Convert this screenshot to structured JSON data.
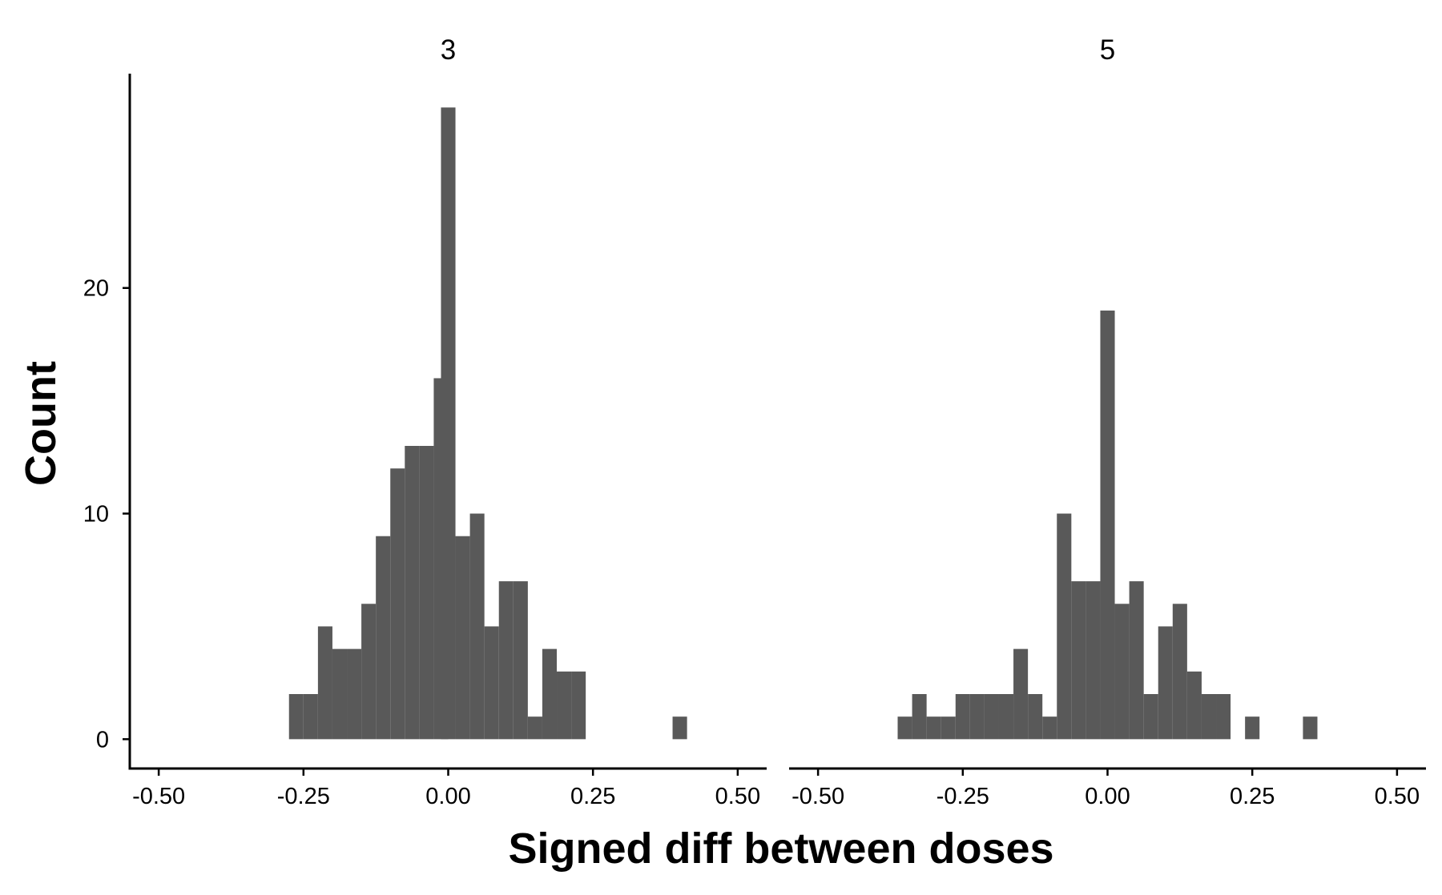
{
  "colors": {
    "bar": "#595959",
    "axis": "#000000",
    "background": "#ffffff"
  },
  "chart_data": {
    "type": "bar",
    "xlabel": "Signed diff between doses",
    "ylabel": "Count",
    "xlim": [
      -0.55,
      0.55
    ],
    "ylim": [
      -1.3,
      29.5
    ],
    "x_ticks": [
      -0.5,
      -0.25,
      0.0,
      0.25,
      0.5
    ],
    "x_tick_labels": [
      "-0.50",
      "-0.25",
      "0.00",
      "0.25",
      "0.50"
    ],
    "y_ticks": [
      0,
      10,
      20
    ],
    "y_tick_labels": [
      "0",
      "10",
      "20"
    ],
    "bin_width": 0.025,
    "grid": false,
    "panels": [
      {
        "strip_label": "3",
        "bins": [
          {
            "x": -0.2625,
            "count": 2
          },
          {
            "x": -0.2375,
            "count": 2
          },
          {
            "x": -0.2125,
            "count": 5
          },
          {
            "x": -0.1875,
            "count": 4
          },
          {
            "x": -0.1625,
            "count": 4
          },
          {
            "x": -0.1375,
            "count": 6
          },
          {
            "x": -0.1125,
            "count": 9
          },
          {
            "x": -0.0875,
            "count": 12
          },
          {
            "x": -0.0625,
            "count": 13
          },
          {
            "x": -0.0375,
            "count": 13
          },
          {
            "x": -0.0125,
            "count": 16
          },
          {
            "x": 0.0,
            "count": 28
          },
          {
            "x": 0.025,
            "count": 9
          },
          {
            "x": 0.05,
            "count": 10
          },
          {
            "x": 0.075,
            "count": 5
          },
          {
            "x": 0.1,
            "count": 7
          },
          {
            "x": 0.125,
            "count": 7
          },
          {
            "x": 0.15,
            "count": 1
          },
          {
            "x": 0.175,
            "count": 4
          },
          {
            "x": 0.2,
            "count": 3
          },
          {
            "x": 0.225,
            "count": 3
          },
          {
            "x": 0.4,
            "count": 1
          }
        ]
      },
      {
        "strip_label": "5",
        "bins": [
          {
            "x": -0.35,
            "count": 1
          },
          {
            "x": -0.325,
            "count": 2
          },
          {
            "x": -0.3,
            "count": 1
          },
          {
            "x": -0.275,
            "count": 1
          },
          {
            "x": -0.25,
            "count": 2
          },
          {
            "x": -0.225,
            "count": 2
          },
          {
            "x": -0.2,
            "count": 2
          },
          {
            "x": -0.175,
            "count": 2
          },
          {
            "x": -0.15,
            "count": 4
          },
          {
            "x": -0.125,
            "count": 2
          },
          {
            "x": -0.1,
            "count": 1
          },
          {
            "x": -0.075,
            "count": 10
          },
          {
            "x": -0.05,
            "count": 7
          },
          {
            "x": -0.025,
            "count": 7
          },
          {
            "x": 0.0,
            "count": 19
          },
          {
            "x": 0.025,
            "count": 6
          },
          {
            "x": 0.05,
            "count": 7
          },
          {
            "x": 0.075,
            "count": 2
          },
          {
            "x": 0.1,
            "count": 5
          },
          {
            "x": 0.125,
            "count": 6
          },
          {
            "x": 0.15,
            "count": 3
          },
          {
            "x": 0.175,
            "count": 2
          },
          {
            "x": 0.2,
            "count": 2
          },
          {
            "x": 0.25,
            "count": 1
          },
          {
            "x": 0.35,
            "count": 1
          }
        ]
      }
    ]
  }
}
